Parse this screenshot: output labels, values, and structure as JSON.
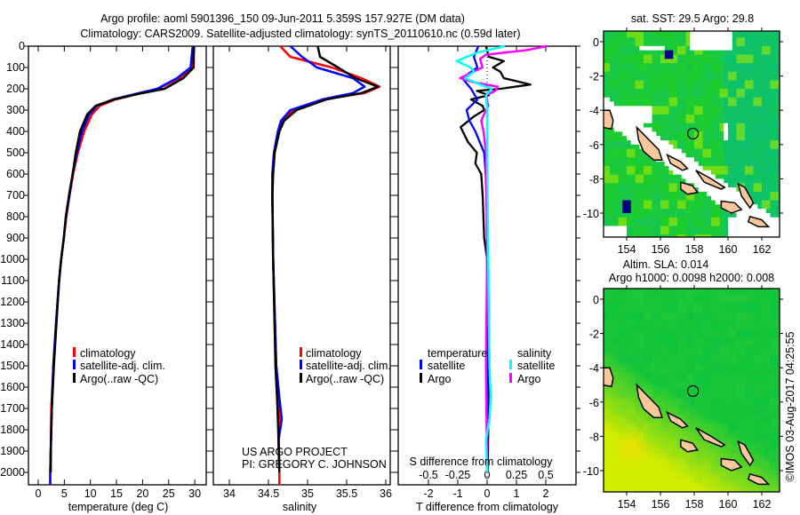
{
  "header": {
    "title_line1": "Argo profile: aoml 5901396_150 09-Jun-2011 5.359S 157.927E (DM data)",
    "title_line2": "Climatology: CARS2009. Satellite-adjusted climatology: synTS_20110610.nc (0.59d later)"
  },
  "colors": {
    "climatology": "#ff0000",
    "satellite_adj": "#0000ff",
    "argo": "#000000",
    "sal_satellite": "#00ffff",
    "sal_argo": "#ff00ff"
  },
  "credits": {
    "line1": "US ARGO PROJECT",
    "line2": "PI: GREGORY C. JOHNSON",
    "stamp": "©IMOS 03-Aug-2017 04:25:55"
  },
  "chart_data": [
    {
      "type": "line",
      "id": "temperature",
      "xlabel": "temperature (deg C)",
      "xlim": [
        -1.9,
        32
      ],
      "xticks": [
        0,
        5,
        10,
        15,
        20,
        25,
        30
      ],
      "ylabel": "depth",
      "ylim": [
        2060,
        0
      ],
      "yticks": [
        0,
        100,
        200,
        300,
        400,
        500,
        600,
        700,
        800,
        900,
        1000,
        1100,
        1200,
        1300,
        1400,
        1500,
        1600,
        1700,
        1800,
        1900,
        2000
      ],
      "legend": [
        "climatology",
        "satellite-adj. clim.",
        "Argo(..raw -QC)"
      ],
      "depth": [
        0,
        50,
        100,
        150,
        200,
        225,
        250,
        280,
        320,
        400,
        500,
        600,
        700,
        800,
        900,
        1000,
        1100,
        1300,
        1500,
        1700,
        1900,
        2000,
        2060
      ],
      "series": [
        {
          "name": "climatology",
          "values": [
            29.9,
            29.8,
            29.6,
            27.0,
            23.0,
            18.9,
            14.8,
            11.8,
            10.3,
            8.8,
            7.6,
            6.7,
            6.0,
            5.4,
            4.9,
            4.4,
            4.0,
            3.4,
            2.9,
            2.5,
            2.4,
            2.3,
            2.3
          ]
        },
        {
          "name": "satellite-adj. clim.",
          "values": [
            29.6,
            29.4,
            29.2,
            26.6,
            22.8,
            18.5,
            14.3,
            11.2,
            9.8,
            8.4,
            7.4,
            6.6,
            6.0,
            5.3,
            4.9,
            4.4,
            4.0,
            3.4,
            2.9,
            2.6,
            2.4,
            2.3,
            2.3
          ]
        },
        {
          "name": "Argo(..raw -QC)",
          "values": [
            29.8,
            29.8,
            29.8,
            27.8,
            24.2,
            19.0,
            14.5,
            11.0,
            9.4,
            8.0,
            7.2,
            6.6,
            5.9,
            5.3,
            4.9,
            4.4,
            4.0,
            3.5,
            3.0,
            2.6,
            2.4,
            2.4,
            null
          ]
        }
      ]
    },
    {
      "type": "line",
      "id": "salinity",
      "xlabel": "salinity",
      "xlim": [
        33.8,
        36.05
      ],
      "xticks": [
        34,
        34.5,
        35,
        35.5,
        36
      ],
      "ylim": [
        2060,
        0
      ],
      "legend": [
        "climatology",
        "satellite-adj. clim.",
        "Argo(..raw -QC)"
      ],
      "depth": [
        0,
        50,
        100,
        150,
        190,
        220,
        250,
        300,
        350,
        400,
        500,
        600,
        700,
        1000,
        1500,
        1650,
        1750,
        1850,
        2000,
        2060
      ],
      "series": [
        {
          "name": "climatology",
          "values": [
            34.65,
            34.78,
            35.31,
            35.69,
            35.92,
            35.73,
            35.19,
            34.82,
            34.68,
            34.63,
            34.57,
            34.55,
            34.55,
            34.56,
            34.6,
            34.63,
            34.64,
            34.63,
            34.64,
            34.64
          ]
        },
        {
          "name": "satellite-adj. clim.",
          "values": [
            34.78,
            34.93,
            35.12,
            35.58,
            35.73,
            35.58,
            35.19,
            34.78,
            34.66,
            34.62,
            34.57,
            34.55,
            34.55,
            34.56,
            34.6,
            34.64,
            34.67,
            34.63,
            34.64,
            null
          ]
        },
        {
          "name": "Argo(..raw -QC)",
          "values": [
            35.13,
            35.16,
            35.39,
            35.61,
            35.9,
            35.69,
            35.24,
            34.86,
            34.7,
            34.64,
            34.58,
            34.56,
            34.55,
            34.56,
            34.59,
            34.61,
            34.62,
            34.63,
            34.64,
            null
          ]
        }
      ]
    },
    {
      "type": "line",
      "id": "difference",
      "xlabel": "T difference from climatology",
      "xlabel2": "S difference from climatology",
      "xlim_T": [
        -3,
        3
      ],
      "xticks_T": [
        -2,
        -1,
        0,
        1,
        2
      ],
      "xlim_S": [
        -0.75,
        0.75
      ],
      "xticks_S": [
        "-0.5",
        "-0.25",
        "0",
        "0.25",
        "0.5"
      ],
      "ylim": [
        2060,
        0
      ],
      "legend": {
        "temperature_title": "temperature",
        "salinity_title": "salinity",
        "satellite": "satellite",
        "argo": "Argo"
      },
      "t_depth": [
        0,
        50,
        100,
        150,
        200,
        250,
        300,
        350,
        400,
        500,
        600,
        800,
        1000,
        1500,
        2000
      ],
      "t_satellite": [
        -0.3,
        -0.45,
        -0.33,
        -0.85,
        -0.55,
        -0.33,
        -0.7,
        -0.6,
        -0.4,
        -0.1,
        -0.05,
        0,
        0,
        0,
        0
      ],
      "t_argo_depth": [
        0,
        50,
        70,
        100,
        120,
        150,
        180,
        200,
        210,
        230,
        250,
        280,
        300,
        330,
        380,
        450,
        500,
        550,
        600,
        700,
        900,
        1000,
        1500,
        1700,
        2000
      ],
      "t_argo": [
        -0.04,
        0.06,
        0.57,
        0.2,
        0.45,
        0.57,
        1.48,
        0.45,
        -0.35,
        0.06,
        -0.55,
        -0.15,
        -0.1,
        -0.45,
        -0.9,
        -0.65,
        -0.35,
        -0.4,
        -0.2,
        -0.15,
        -0.1,
        0,
        0.05,
        0.05,
        0.02
      ],
      "s_depth": [
        0,
        30,
        70,
        100,
        120,
        150,
        180,
        200,
        230,
        300,
        500,
        1000,
        1500,
        1650,
        1750,
        1850,
        2000
      ],
      "s_satellite": [
        0.15,
        -0.085,
        -0.26,
        -0.14,
        -0.11,
        -0.19,
        -0.06,
        0.04,
        -0.01,
        0,
        0,
        0.01,
        0.02,
        0.03,
        0.02,
        -0.01,
        0
      ],
      "s_argo_depth": [
        0,
        20,
        40,
        60,
        100,
        150,
        170,
        190,
        210,
        230,
        280,
        300,
        350,
        400,
        500,
        1000,
        1500,
        2000
      ],
      "s_argo": [
        0.51,
        0.32,
        -0.01,
        -0.06,
        -0.04,
        -0.23,
        -0.11,
        0.09,
        0.07,
        -0.01,
        0.01,
        -0.01,
        -0.05,
        -0.03,
        -0.01,
        0,
        -0.01,
        0
      ]
    },
    {
      "type": "heatmap",
      "id": "sst_map",
      "title": "sat. SST: 29.5 Argo: 29.8",
      "xlim": [
        152.6,
        163.1
      ],
      "ylim": [
        -11.4,
        0.6
      ],
      "xticks": [
        154,
        156,
        158,
        160,
        162
      ],
      "yticks": [
        0,
        -2,
        -4,
        -6,
        -8,
        -10
      ],
      "marker": {
        "lon": 157.927,
        "lat": -5.359
      }
    },
    {
      "type": "heatmap",
      "id": "sla_map",
      "title": "Altim. SLA: 0.014",
      "subtitle": "Argo h1000: 0.0098 h2000: 0.008",
      "xlim": [
        152.6,
        163.1
      ],
      "ylim": [
        -11.4,
        0.6
      ],
      "xticks": [
        154,
        156,
        158,
        160,
        162
      ],
      "yticks": [
        0,
        -2,
        -4,
        -6,
        -8,
        -10
      ],
      "marker": {
        "lon": 157.927,
        "lat": -5.359
      }
    }
  ]
}
